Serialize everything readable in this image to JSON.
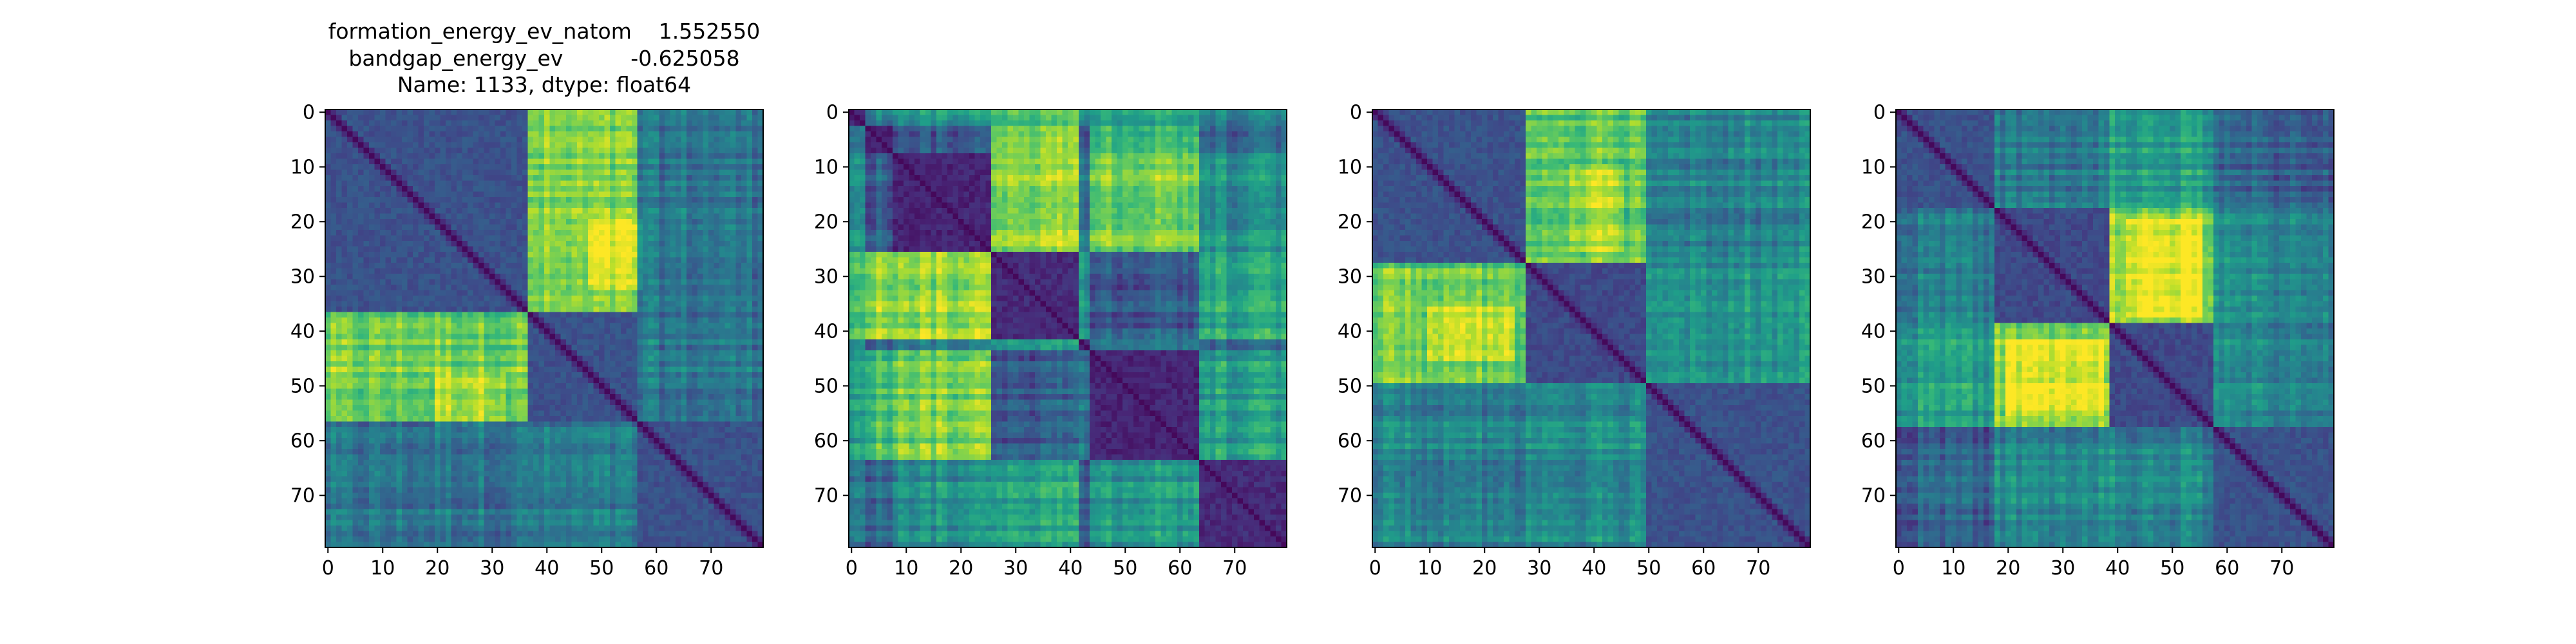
{
  "figure": {
    "title_lines": [
      "formation_energy_ev_natom    1.552550",
      "bandgap_energy_ev          -0.625058",
      "Name: 1133, dtype: float64"
    ]
  },
  "chart_data": [
    {
      "type": "heatmap",
      "title": "formation_energy_ev_natom    1.552550\nbandgap_energy_ev          -0.625058\nName: 1133, dtype: float64",
      "xlabel": "",
      "ylabel": "",
      "matrix_size": 80,
      "colormap": "viridis",
      "block_boundaries": [
        0,
        37,
        57,
        80
      ],
      "block_values": [
        [
          0.25,
          0.78,
          0.38
        ],
        [
          0.78,
          0.25,
          0.4
        ],
        [
          0.38,
          0.4,
          0.25
        ]
      ],
      "hot_spots": [
        {
          "row_range": [
            20,
            33
          ],
          "col_range": [
            48,
            58
          ]
        }
      ],
      "x_ticks": [
        0,
        10,
        20,
        30,
        40,
        50,
        60,
        70
      ],
      "y_ticks": [
        0,
        10,
        20,
        30,
        40,
        50,
        60,
        70
      ],
      "xlim": [
        0,
        80
      ],
      "ylim": [
        80,
        0
      ],
      "grid": false
    },
    {
      "type": "heatmap",
      "title": "",
      "xlabel": "",
      "ylabel": "",
      "matrix_size": 80,
      "colormap": "viridis",
      "block_boundaries": [
        0,
        3,
        8,
        26,
        42,
        44,
        64,
        80
      ],
      "block_values": [
        [
          0.1,
          0.45,
          0.55,
          0.75,
          0.5,
          0.6,
          0.45,
          0.5
        ],
        [
          0.45,
          0.1,
          0.3,
          0.85,
          0.3,
          0.7,
          0.35,
          0.45
        ],
        [
          0.55,
          0.3,
          0.1,
          0.85,
          0.4,
          0.8,
          0.5,
          0.55
        ],
        [
          0.75,
          0.85,
          0.85,
          0.12,
          0.55,
          0.3,
          0.6,
          0.6
        ],
        [
          0.5,
          0.3,
          0.4,
          0.55,
          0.1,
          0.4,
          0.3,
          0.3
        ],
        [
          0.6,
          0.7,
          0.8,
          0.3,
          0.4,
          0.1,
          0.55,
          0.5
        ],
        [
          0.45,
          0.35,
          0.5,
          0.6,
          0.3,
          0.55,
          0.12,
          0.3
        ],
        [
          0.5,
          0.45,
          0.55,
          0.6,
          0.3,
          0.5,
          0.3,
          0.12
        ]
      ],
      "x_ticks": [
        0,
        10,
        20,
        30,
        40,
        50,
        60,
        70
      ],
      "y_ticks": [
        0,
        10,
        20,
        30,
        40,
        50,
        60,
        70
      ],
      "xlim": [
        0,
        80
      ],
      "ylim": [
        80,
        0
      ],
      "grid": false
    },
    {
      "type": "heatmap",
      "title": "",
      "xlabel": "",
      "ylabel": "",
      "matrix_size": 80,
      "colormap": "viridis",
      "block_boundaries": [
        0,
        28,
        50,
        80
      ],
      "block_values": [
        [
          0.25,
          0.75,
          0.45
        ],
        [
          0.75,
          0.22,
          0.5
        ],
        [
          0.45,
          0.5,
          0.25
        ]
      ],
      "hot_spots": [
        {
          "row_range": [
            10,
            26
          ],
          "col_range": [
            36,
            46
          ]
        }
      ],
      "x_ticks": [
        0,
        10,
        20,
        30,
        40,
        50,
        60,
        70
      ],
      "y_ticks": [
        0,
        10,
        20,
        30,
        40,
        50,
        60,
        70
      ],
      "xlim": [
        0,
        80
      ],
      "ylim": [
        80,
        0
      ],
      "grid": false
    },
    {
      "type": "heatmap",
      "title": "",
      "xlabel": "",
      "ylabel": "",
      "matrix_size": 80,
      "colormap": "viridis",
      "block_boundaries": [
        0,
        18,
        39,
        58,
        80
      ],
      "block_values": [
        [
          0.25,
          0.4,
          0.55,
          0.3
        ],
        [
          0.4,
          0.22,
          0.82,
          0.45
        ],
        [
          0.55,
          0.82,
          0.22,
          0.45
        ],
        [
          0.3,
          0.45,
          0.45,
          0.25
        ]
      ],
      "hot_spots": [
        {
          "row_range": [
            20,
            38
          ],
          "col_range": [
            42,
            56
          ]
        }
      ],
      "x_ticks": [
        0,
        10,
        20,
        30,
        40,
        50,
        60,
        70
      ],
      "y_ticks": [
        0,
        10,
        20,
        30,
        40,
        50,
        60,
        70
      ],
      "xlim": [
        0,
        80
      ],
      "ylim": [
        80,
        0
      ],
      "grid": false
    }
  ]
}
